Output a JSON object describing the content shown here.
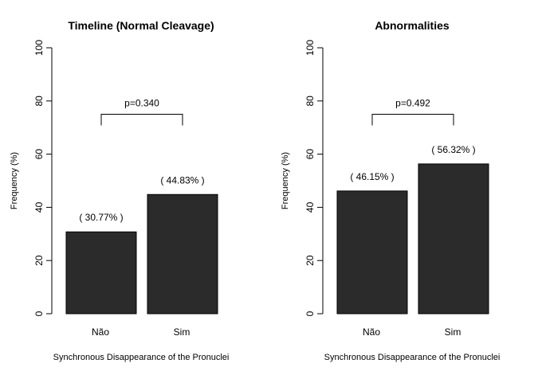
{
  "chart_data": [
    {
      "type": "bar",
      "title": "Timeline (Normal Cleavage)",
      "xlabel": "Synchronous Disappearance of the Pronuclei",
      "ylabel": "Frequency (%)",
      "ylim": [
        0,
        100
      ],
      "yticks": [
        0,
        20,
        40,
        60,
        80,
        100
      ],
      "yticklabels": [
        "0",
        "20",
        "40",
        "60",
        "80",
        "100"
      ],
      "categories": [
        "Não",
        "Sim"
      ],
      "values": [
        30.77,
        44.83
      ],
      "data_labels": [
        "( 30.77% )",
        "( 44.83% )"
      ],
      "bracket_y": 75,
      "p_value": "p=0.340",
      "bar_color": "#2b2b2b"
    },
    {
      "type": "bar",
      "title": "Abnormalities",
      "xlabel": "Synchronous Disappearance of the Pronuclei",
      "ylabel": "Frequency (%)",
      "ylim": [
        0,
        100
      ],
      "yticks": [
        0,
        20,
        40,
        60,
        80,
        100
      ],
      "yticklabels": [
        "0",
        "20",
        "40",
        "60",
        "80",
        "100"
      ],
      "categories": [
        "Não",
        "Sim"
      ],
      "values": [
        46.15,
        56.32
      ],
      "data_labels": [
        "( 46.15% )",
        "( 56.32% )"
      ],
      "bracket_y": 75,
      "p_value": "p=0.492",
      "bar_color": "#2b2b2b"
    }
  ]
}
